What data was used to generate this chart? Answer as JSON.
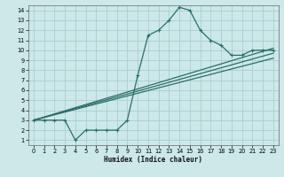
{
  "xlabel": "Humidex (Indice chaleur)",
  "bg_color": "#cce8e8",
  "grid_color": "#aacece",
  "line_color": "#2a6e68",
  "xlim": [
    -0.5,
    23.5
  ],
  "ylim": [
    0.5,
    14.5
  ],
  "xticks": [
    0,
    1,
    2,
    3,
    4,
    5,
    6,
    7,
    8,
    9,
    10,
    11,
    12,
    13,
    14,
    15,
    16,
    17,
    18,
    19,
    20,
    21,
    22,
    23
  ],
  "yticks": [
    1,
    2,
    3,
    4,
    5,
    6,
    7,
    8,
    9,
    10,
    11,
    12,
    13,
    14
  ],
  "series1_x": [
    0,
    1,
    2,
    3,
    4,
    5,
    6,
    7,
    8,
    9,
    10,
    11,
    12,
    13,
    14,
    15,
    16,
    17,
    18,
    19,
    20,
    21,
    22,
    23
  ],
  "series1_y": [
    3,
    3,
    3,
    3,
    1,
    2,
    2,
    2,
    2,
    3,
    7.5,
    11.5,
    12,
    13,
    14.3,
    14,
    12,
    11,
    10.5,
    9.5,
    9.5,
    10,
    10,
    10
  ],
  "series2_x": [
    0,
    23
  ],
  "series2_y": [
    3,
    10.2
  ],
  "series3_x": [
    0,
    23
  ],
  "series3_y": [
    3,
    9.7
  ],
  "series4_x": [
    0,
    23
  ],
  "series4_y": [
    3,
    9.2
  ],
  "xlabel_fontsize": 5.5,
  "tick_fontsize": 4.8
}
